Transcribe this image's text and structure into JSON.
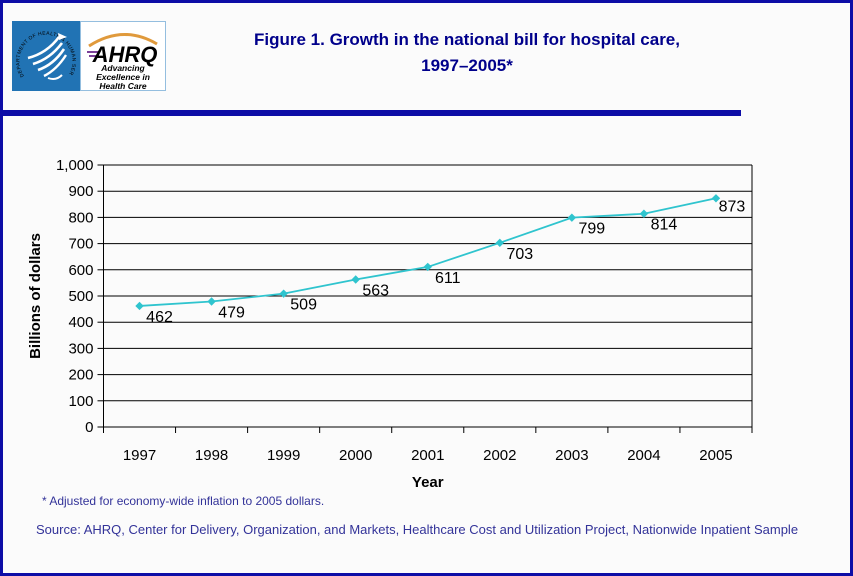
{
  "header": {
    "hhs_logo": {
      "circular_text": "DEPARTMENT OF HEALTH & HUMAN SERVICES · USA"
    },
    "ahrq_logo": {
      "acronym": "AHRQ",
      "tagline_lines": [
        "Advancing",
        "Excellence in",
        "Health Care"
      ]
    },
    "title_line1": "Figure 1. Growth in the national bill for hospital care,",
    "title_line2": "1997–2005*"
  },
  "chart_data": {
    "type": "line",
    "title": "Figure 1. Growth in the national bill for hospital care, 1997–2005*",
    "categories": [
      "1997",
      "1998",
      "1999",
      "2000",
      "2001",
      "2002",
      "2003",
      "2004",
      "2005"
    ],
    "values": [
      462,
      479,
      509,
      563,
      611,
      703,
      799,
      814,
      873
    ],
    "xlabel": "Year",
    "ylabel": "Billions of dollars",
    "ylim": [
      0,
      1000
    ],
    "ytick_step": 100,
    "grid": "horizontal",
    "legend": "none",
    "show_data_labels": true,
    "marker": "diamond",
    "line_color": "#2FC4CE"
  },
  "footnote": "* Adjusted for economy-wide inflation to 2005 dollars.",
  "source": "Source: AHRQ, Center for Delivery, Organization, and Markets, Healthcare Cost and Utilization Project, Nationwide Inpatient Sample",
  "colors": {
    "page_border": "#0D0DA6",
    "title_text": "#00008B",
    "note_text": "#333399",
    "hhs_blue": "#2173B4",
    "ahrq_purple": "#7B4099",
    "ahrq_arc_orange": "#E09A3C",
    "ahrq_tagline_blue": "#1B75BC",
    "chart_line": "#2FC4CE"
  }
}
